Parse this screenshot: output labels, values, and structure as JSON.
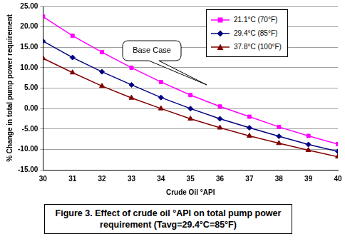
{
  "chart_data": {
    "type": "line",
    "title": "Figure 3. Effect of crude oil °API on total pump power requirement (Tavg=29.4°C=85°F)",
    "x_label": "Crude Oil °API",
    "y_label": "% Change in total pump power requirement",
    "x": [
      30,
      31,
      32,
      33,
      34,
      35,
      36,
      37,
      38,
      39,
      40
    ],
    "series": [
      {
        "name": "21.1°C (70°F)",
        "color": "#ff00ff",
        "marker": "square",
        "line_style": "solid",
        "values": [
          22.5,
          17.8,
          13.8,
          10.0,
          6.5,
          3.3,
          0.5,
          -2.0,
          -4.5,
          -6.7,
          -8.7
        ]
      },
      {
        "name": "29.4°C (85°F)",
        "color": "#000080",
        "marker": "diamond",
        "line_style": "solid",
        "values": [
          16.5,
          12.5,
          9.0,
          5.8,
          2.7,
          0.0,
          -2.5,
          -4.7,
          -6.8,
          -8.8,
          -10.5
        ]
      },
      {
        "name": "37.8°C (100°F)",
        "color": "#800000",
        "marker": "triangle",
        "line_style": "solid",
        "values": [
          12.3,
          8.8,
          5.5,
          2.6,
          0.0,
          -2.5,
          -4.7,
          -6.7,
          -8.5,
          -10.2,
          -11.8
        ]
      }
    ],
    "xlim": [
      30,
      40
    ],
    "xticks": [
      30,
      31,
      32,
      33,
      34,
      35,
      36,
      37,
      38,
      39,
      40
    ],
    "ylim": [
      -15,
      25
    ],
    "yticks": [
      {
        "value": -15,
        "label": "-15.00"
      },
      {
        "value": -10,
        "label": "-10.00"
      },
      {
        "value": -5,
        "label": "-5.00"
      },
      {
        "value": 0,
        "label": "0.00"
      },
      {
        "value": 5,
        "label": "5.00"
      },
      {
        "value": 10,
        "label": "10.00"
      },
      {
        "value": 15,
        "label": "15.00"
      },
      {
        "value": 20,
        "label": "20.00"
      },
      {
        "value": 25,
        "label": "25.00"
      }
    ],
    "grid": true,
    "legend": "upper right",
    "annotations": [
      {
        "text": "Base Case"
      }
    ]
  }
}
